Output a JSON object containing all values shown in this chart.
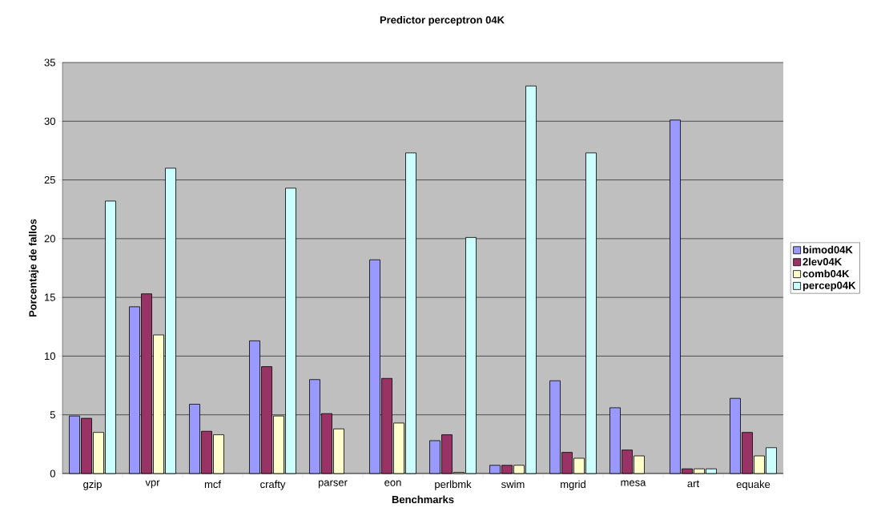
{
  "chart_data": {
    "type": "bar",
    "title": "Predictor perceptron 04K",
    "xlabel": "Benchmarks",
    "ylabel": "Porcentaje de fallos",
    "categories": [
      "gzip",
      "vpr",
      "mcf",
      "crafty",
      "parser",
      "eon",
      "perlbmk",
      "swim",
      "mgrid",
      "mesa",
      "art",
      "equake"
    ],
    "series": [
      {
        "name": "bimod04K",
        "color": "#9999ff",
        "values": [
          4.9,
          14.2,
          5.9,
          11.3,
          8.0,
          18.2,
          2.8,
          0.7,
          7.9,
          5.6,
          30.1,
          6.4
        ]
      },
      {
        "name": "2lev04K",
        "color": "#993366",
        "values": [
          4.7,
          15.3,
          3.6,
          9.1,
          5.1,
          8.1,
          3.3,
          0.7,
          1.8,
          2.0,
          0.4,
          3.5
        ]
      },
      {
        "name": "comb04K",
        "color": "#ffffcc",
        "values": [
          3.5,
          11.8,
          3.3,
          4.9,
          3.8,
          4.3,
          0.1,
          0.7,
          1.3,
          1.5,
          0.4,
          1.5
        ]
      },
      {
        "name": "percep04K",
        "color": "#ccffff",
        "values": [
          23.2,
          26.0,
          null,
          24.3,
          null,
          27.3,
          20.1,
          33.0,
          27.3,
          null,
          0.4,
          2.2
        ]
      }
    ],
    "ylim": [
      0,
      35
    ],
    "yticks": [
      0,
      5,
      10,
      15,
      20,
      25,
      30,
      35
    ],
    "grid": "y",
    "legend": "right"
  }
}
